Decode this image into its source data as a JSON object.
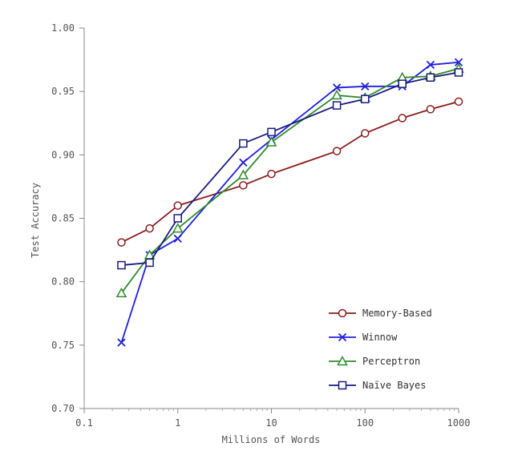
{
  "chart_data": {
    "type": "line",
    "title": "",
    "xlabel": "Millions of Words",
    "ylabel": "Test Accuracy",
    "xscale": "log",
    "xlim": [
      0.1,
      1000
    ],
    "ylim": [
      0.7,
      1.0
    ],
    "xticks": [
      0.1,
      1,
      10,
      100,
      1000
    ],
    "xtick_labels": [
      "0.1",
      "1",
      "10",
      "100",
      "1000"
    ],
    "yticks": [
      0.7,
      0.75,
      0.8,
      0.85,
      0.9,
      0.95,
      1.0
    ],
    "ytick_labels": [
      "0.70",
      "0.75",
      "0.80",
      "0.85",
      "0.90",
      "0.95",
      "1.00"
    ],
    "grid": false,
    "legend_position": "bottom-right",
    "series": [
      {
        "name": "Memory-Based",
        "color": "#8b1a1a",
        "marker": "circle",
        "x": [
          0.25,
          0.5,
          1,
          5,
          10,
          50,
          100,
          250,
          500,
          1000
        ],
        "y": [
          0.831,
          0.842,
          0.86,
          0.876,
          0.885,
          0.903,
          0.917,
          0.929,
          0.936,
          0.942
        ]
      },
      {
        "name": "Winnow",
        "color": "#1f1fe0",
        "marker": "x",
        "x": [
          0.25,
          0.5,
          1,
          5,
          10,
          50,
          100,
          250,
          500,
          1000
        ],
        "y": [
          0.752,
          0.821,
          0.834,
          0.894,
          0.912,
          0.953,
          0.954,
          0.954,
          0.971,
          0.973
        ]
      },
      {
        "name": "Perceptron",
        "color": "#2e8b2e",
        "marker": "triangle",
        "x": [
          0.25,
          0.5,
          1,
          5,
          10,
          50,
          100,
          250,
          500,
          1000
        ],
        "y": [
          0.791,
          0.821,
          0.842,
          0.884,
          0.91,
          0.947,
          0.945,
          0.961,
          0.962,
          0.968
        ]
      },
      {
        "name": "Naïve Bayes",
        "color": "#1a1a80",
        "marker": "square",
        "x": [
          0.25,
          0.5,
          1,
          5,
          10,
          50,
          100,
          250,
          500,
          1000
        ],
        "y": [
          0.813,
          0.815,
          0.85,
          0.909,
          0.918,
          0.939,
          0.944,
          0.956,
          0.961,
          0.965
        ]
      }
    ]
  }
}
